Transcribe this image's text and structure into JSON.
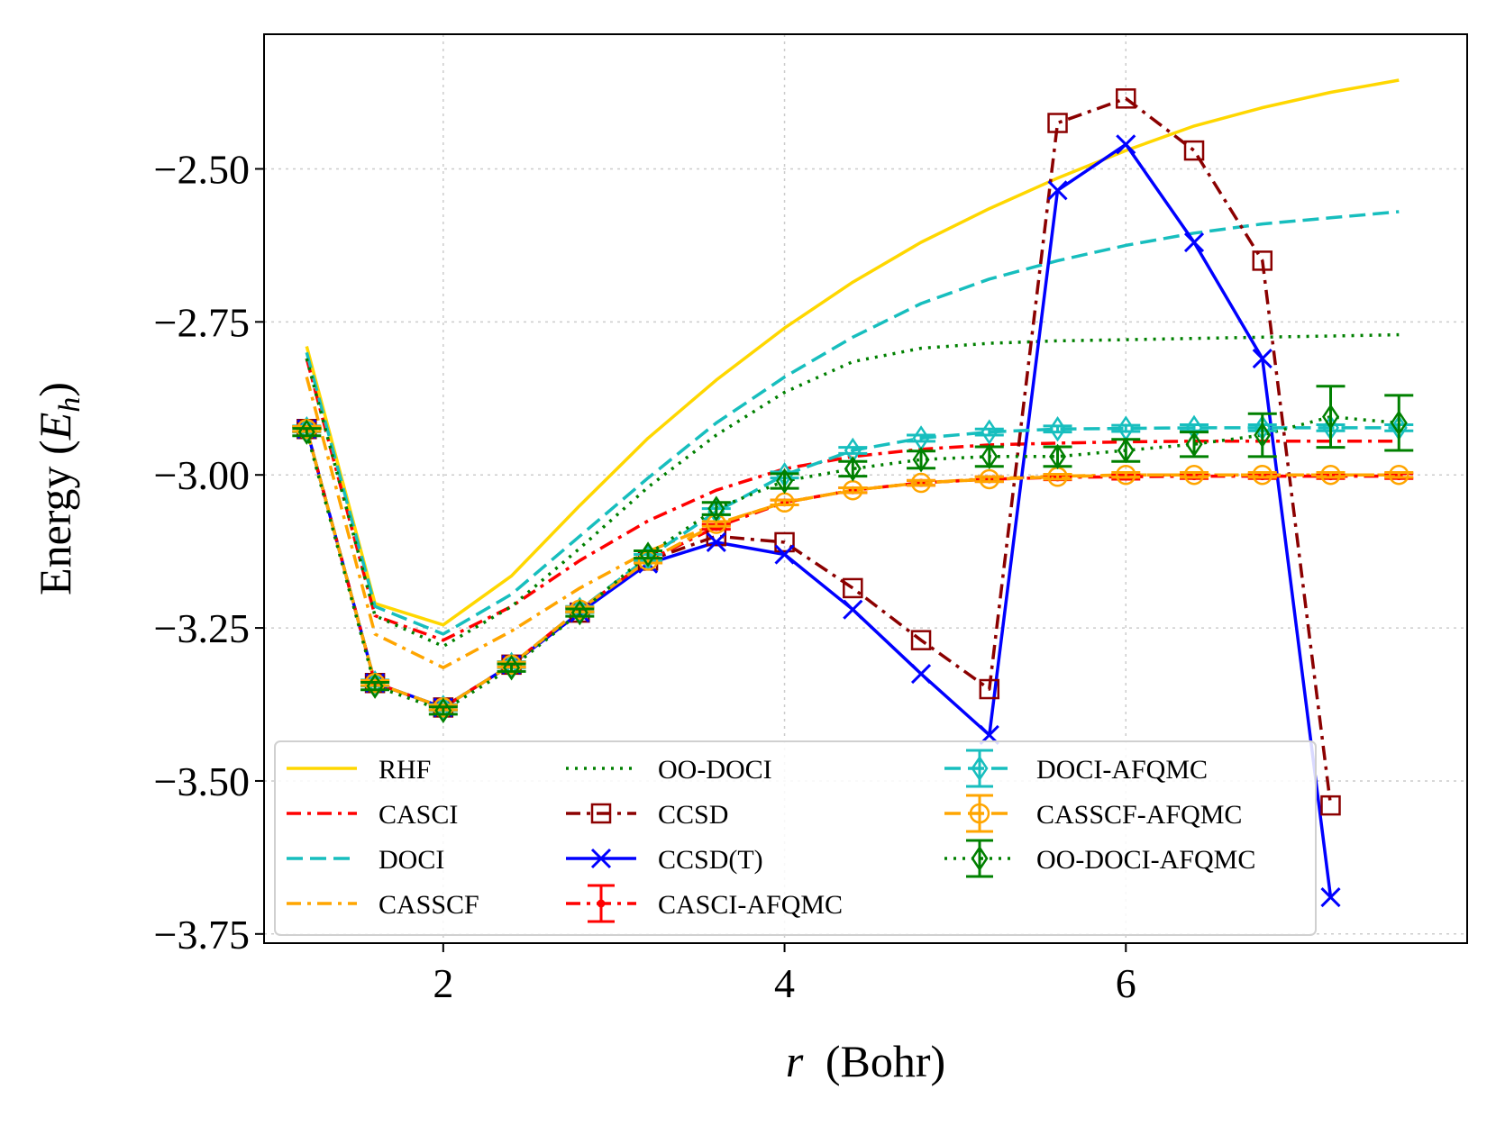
{
  "chart_data": {
    "type": "line",
    "title": "",
    "xlabel_var": "r",
    "xlabel_unit": "(Bohr)",
    "ylabel_main": "Energy (",
    "ylabel_var": "E",
    "ylabel_sub": "h",
    "ylabel_close": ")",
    "xlim": [
      0.95,
      8.0
    ],
    "ylim": [
      -3.765,
      -2.28
    ],
    "xticks": [
      2,
      4,
      6
    ],
    "xtick_labels": [
      "2",
      "4",
      "6"
    ],
    "yticks": [
      -2.5,
      -2.75,
      -3.0,
      -3.25,
      -3.5,
      -3.75
    ],
    "ytick_labels": [
      "−2.50",
      "−2.75",
      "−3.00",
      "−3.25",
      "−3.50",
      "−3.75"
    ],
    "grid": true,
    "legend_position": "lower-center",
    "series": [
      {
        "name": "RHF",
        "color": "#FFD700",
        "dash": "solid",
        "marker": "none",
        "x": [
          1.2,
          1.6,
          2.0,
          2.4,
          2.8,
          3.2,
          3.6,
          4.0,
          4.4,
          4.8,
          5.2,
          5.6,
          6.0,
          6.4,
          6.8,
          7.2,
          7.6
        ],
        "y": [
          -2.79,
          -3.21,
          -3.245,
          -3.165,
          -3.05,
          -2.94,
          -2.845,
          -2.76,
          -2.685,
          -2.62,
          -2.565,
          -2.515,
          -2.47,
          -2.43,
          -2.4,
          -2.375,
          -2.355
        ]
      },
      {
        "name": "CASCI",
        "color": "#FF0000",
        "dash": "dashdot",
        "marker": "none",
        "x": [
          1.2,
          1.6,
          2.0,
          2.4,
          2.8,
          3.2,
          3.6,
          4.0,
          4.4,
          4.8,
          5.2,
          5.6,
          6.0,
          6.4,
          6.8,
          7.2,
          7.6
        ],
        "y": [
          -2.81,
          -3.23,
          -3.27,
          -3.215,
          -3.14,
          -3.075,
          -3.025,
          -2.99,
          -2.97,
          -2.958,
          -2.951,
          -2.948,
          -2.946,
          -2.945,
          -2.945,
          -2.945,
          -2.945
        ]
      },
      {
        "name": "DOCI",
        "color": "#17BEBE",
        "dash": "dashed",
        "marker": "none",
        "x": [
          1.2,
          1.6,
          2.0,
          2.4,
          2.8,
          3.2,
          3.6,
          4.0,
          4.4,
          4.8,
          5.2,
          5.6,
          6.0,
          6.4,
          6.8,
          7.2,
          7.6
        ],
        "y": [
          -2.8,
          -3.215,
          -3.26,
          -3.195,
          -3.1,
          -3.005,
          -2.915,
          -2.84,
          -2.775,
          -2.72,
          -2.68,
          -2.65,
          -2.625,
          -2.605,
          -2.59,
          -2.58,
          -2.57
        ]
      },
      {
        "name": "CASSCF",
        "color": "#FFA500",
        "dash": "dashdot",
        "marker": "none",
        "x": [
          1.2,
          1.6,
          2.0,
          2.4,
          2.8,
          3.2,
          3.6,
          4.0,
          4.4,
          4.8,
          5.2,
          5.6,
          6.0,
          6.4,
          6.8,
          7.2,
          7.6
        ],
        "y": [
          -2.84,
          -3.26,
          -3.315,
          -3.255,
          -3.185,
          -3.125,
          -3.08,
          -3.045,
          -3.025,
          -3.013,
          -3.006,
          -3.002,
          -3.0,
          -3.0,
          -3.0,
          -3.0,
          -3.0
        ]
      },
      {
        "name": "OO-DOCI",
        "color": "#008000",
        "dash": "dotted",
        "marker": "none",
        "x": [
          1.2,
          1.6,
          2.0,
          2.4,
          2.8,
          3.2,
          3.6,
          4.0,
          4.4,
          4.8,
          5.2,
          5.6,
          6.0,
          6.4,
          6.8,
          7.2,
          7.6
        ],
        "y": [
          -2.81,
          -3.23,
          -3.28,
          -3.215,
          -3.12,
          -3.02,
          -2.935,
          -2.865,
          -2.815,
          -2.793,
          -2.785,
          -2.781,
          -2.779,
          -2.777,
          -2.775,
          -2.773,
          -2.771
        ]
      },
      {
        "name": "CCSD",
        "color": "#8B0000",
        "dash": "dashdot",
        "marker": "square-open",
        "x": [
          1.2,
          1.6,
          2.0,
          2.4,
          2.8,
          3.2,
          3.6,
          4.0,
          4.4,
          4.8,
          5.2,
          5.6,
          6.0,
          6.4,
          6.8,
          7.2
        ],
        "y": [
          -2.925,
          -3.34,
          -3.38,
          -3.31,
          -3.225,
          -3.14,
          -3.1,
          -3.11,
          -3.185,
          -3.27,
          -3.35,
          -2.425,
          -2.385,
          -2.47,
          -2.65,
          -3.54
        ]
      },
      {
        "name": "CCSD(T)",
        "color": "#0000FF",
        "dash": "solid",
        "marker": "x",
        "x": [
          1.2,
          1.6,
          2.0,
          2.4,
          2.8,
          3.2,
          3.6,
          4.0,
          4.4,
          4.8,
          5.2,
          5.6,
          6.0,
          6.4,
          6.8,
          7.2
        ],
        "y": [
          -2.925,
          -3.34,
          -3.38,
          -3.31,
          -3.225,
          -3.145,
          -3.11,
          -3.13,
          -3.22,
          -3.325,
          -3.425,
          -2.535,
          -2.46,
          -2.62,
          -2.81,
          -3.69
        ]
      },
      {
        "name": "CASCI-AFQMC",
        "color": "#FF0000",
        "dash": "dashdot",
        "marker": "dot-errorbar",
        "x": [
          1.2,
          1.6,
          2.0,
          2.4,
          2.8,
          3.2,
          3.6,
          4.0,
          4.4,
          4.8,
          5.2,
          5.6,
          6.0,
          6.4,
          6.8,
          7.2,
          7.6
        ],
        "y": [
          -2.925,
          -3.34,
          -3.38,
          -3.31,
          -3.22,
          -3.14,
          -3.085,
          -3.045,
          -3.025,
          -3.013,
          -3.007,
          -3.004,
          -3.003,
          -3.002,
          -3.002,
          -3.002,
          -3.002
        ],
        "err": [
          0.004,
          0.004,
          0.004,
          0.004,
          0.004,
          0.004,
          0.004,
          0.004,
          0.004,
          0.004,
          0.004,
          0.004,
          0.004,
          0.004,
          0.004,
          0.004,
          0.004
        ]
      },
      {
        "name": "DOCI-AFQMC",
        "color": "#17BEBE",
        "dash": "dashed",
        "marker": "diamond-open",
        "x": [
          1.2,
          1.6,
          2.0,
          2.4,
          2.8,
          3.2,
          3.6,
          4.0,
          4.4,
          4.8,
          5.2,
          5.6,
          6.0,
          6.4,
          6.8,
          7.2,
          7.6
        ],
        "y": [
          -2.925,
          -3.34,
          -3.38,
          -3.31,
          -3.22,
          -3.135,
          -3.06,
          -3.0,
          -2.96,
          -2.94,
          -2.93,
          -2.925,
          -2.924,
          -2.923,
          -2.923,
          -2.923,
          -2.923
        ],
        "err": [
          0.005,
          0.005,
          0.005,
          0.005,
          0.005,
          0.005,
          0.005,
          0.005,
          0.005,
          0.005,
          0.005,
          0.005,
          0.005,
          0.005,
          0.005,
          0.005,
          0.005
        ]
      },
      {
        "name": "CASSCF-AFQMC",
        "color": "#FFA500",
        "dash": "dashed",
        "marker": "circle-open",
        "x": [
          1.2,
          1.6,
          2.0,
          2.4,
          2.8,
          3.2,
          3.6,
          4.0,
          4.4,
          4.8,
          5.2,
          5.6,
          6.0,
          6.4,
          6.8,
          7.2,
          7.6
        ],
        "y": [
          -2.925,
          -3.34,
          -3.38,
          -3.31,
          -3.22,
          -3.14,
          -3.08,
          -3.045,
          -3.025,
          -3.013,
          -3.007,
          -3.003,
          -3.0,
          -3.0,
          -3.0,
          -3.0,
          -3.0
        ],
        "err": [
          0.004,
          0.004,
          0.004,
          0.004,
          0.004,
          0.004,
          0.004,
          0.004,
          0.004,
          0.004,
          0.004,
          0.004,
          0.004,
          0.004,
          0.004,
          0.004,
          0.004
        ]
      },
      {
        "name": "OO-DOCI-AFQMC",
        "color": "#008000",
        "dash": "dotted",
        "marker": "diamond-open",
        "x": [
          1.2,
          1.6,
          2.0,
          2.4,
          2.8,
          3.2,
          3.6,
          4.0,
          4.4,
          4.8,
          5.2,
          5.6,
          6.0,
          6.4,
          6.8,
          7.2,
          7.6
        ],
        "y": [
          -2.93,
          -3.345,
          -3.385,
          -3.315,
          -3.225,
          -3.13,
          -3.055,
          -3.01,
          -2.99,
          -2.975,
          -2.97,
          -2.97,
          -2.96,
          -2.95,
          -2.935,
          -2.905,
          -2.915
        ],
        "err": [
          0.006,
          0.006,
          0.006,
          0.006,
          0.006,
          0.006,
          0.01,
          0.012,
          0.012,
          0.014,
          0.016,
          0.016,
          0.018,
          0.02,
          0.035,
          0.05,
          0.045
        ]
      }
    ]
  }
}
